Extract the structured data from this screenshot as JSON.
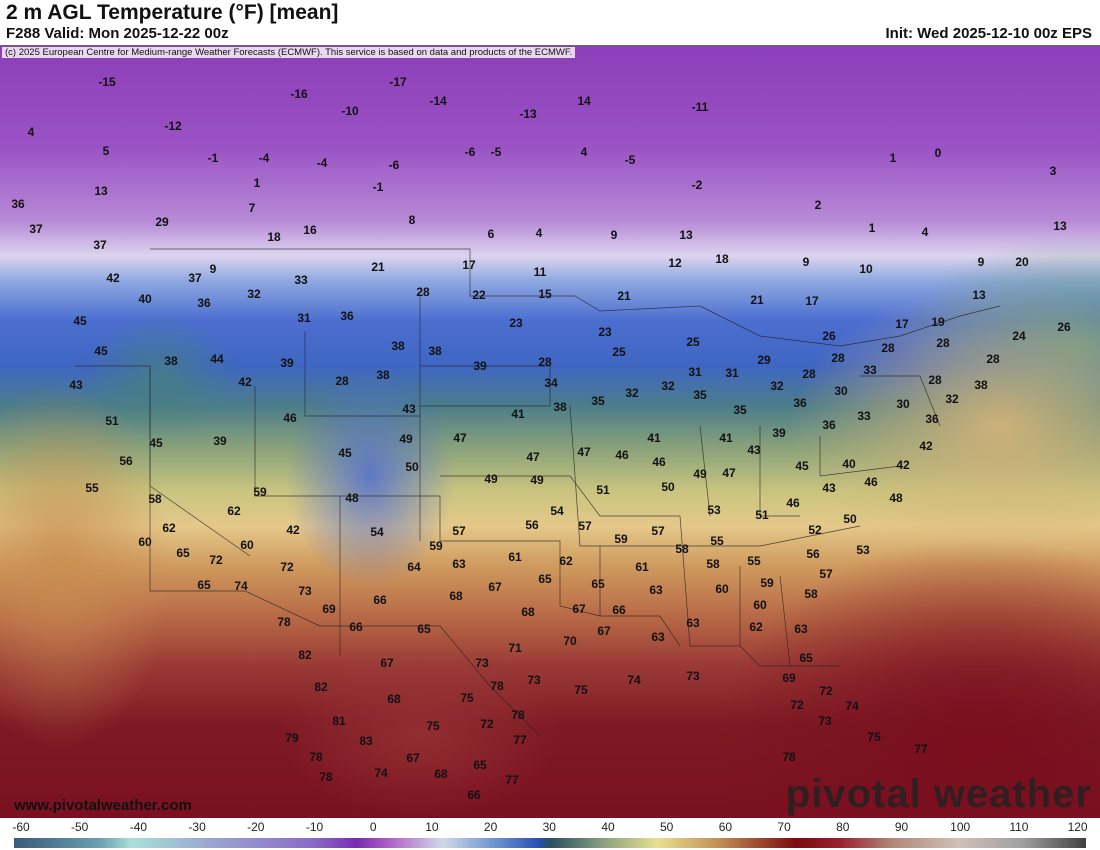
{
  "header": {
    "title": "2 m AGL Temperature (°F) [mean]",
    "valid": "F288 Valid: Mon 2025-12-22 00z",
    "init": "Init: Wed 2025-12-10 00z EPS"
  },
  "copyright": "(c) 2025 European Centre for Medium-range Weather Forecasts (ECMWF). This service is based on data and products of the ECMWF.",
  "watermark": "pivotal weather",
  "url": "www.pivotalweather.com",
  "colorbar": {
    "unit": "°F",
    "ticks": [
      "-60",
      "-50",
      "-40",
      "-30",
      "-20",
      "-10",
      "0",
      "10",
      "20",
      "30",
      "40",
      "50",
      "60",
      "70",
      "80",
      "90",
      "100",
      "110",
      "120"
    ]
  },
  "temperature_labels": [
    "-15",
    "-17",
    "-16",
    "-14",
    "14",
    "-10",
    "-11",
    "-13",
    "-12",
    "4",
    "5",
    "-1",
    "-4",
    "-4",
    "-6",
    "-6",
    "-5",
    "4",
    "-5",
    "1",
    "0",
    "3",
    "13",
    "1",
    "-1",
    "-2",
    "36",
    "7",
    "8",
    "2",
    "29",
    "37",
    "18",
    "16",
    "6",
    "4",
    "9",
    "13",
    "1",
    "4",
    "13",
    "37",
    "11",
    "9",
    "21",
    "17",
    "12",
    "18",
    "9",
    "10",
    "9",
    "20",
    "42",
    "37",
    "33",
    "40",
    "32",
    "28",
    "22",
    "15",
    "21",
    "21",
    "17",
    "13",
    "36",
    "31",
    "36",
    "23",
    "17",
    "19",
    "26",
    "45",
    "24",
    "26",
    "23",
    "38",
    "38",
    "25",
    "28",
    "28",
    "28",
    "45",
    "38",
    "44",
    "39",
    "28",
    "25",
    "29",
    "28",
    "33",
    "38",
    "28",
    "42",
    "43",
    "39",
    "28",
    "34",
    "31",
    "31",
    "32",
    "28",
    "38",
    "30",
    "35",
    "32",
    "32",
    "35",
    "35",
    "36",
    "38",
    "43",
    "41",
    "33",
    "30",
    "32",
    "36",
    "51",
    "46",
    "39",
    "49",
    "47",
    "45",
    "41",
    "41",
    "39",
    "36",
    "42",
    "47",
    "46",
    "47",
    "45",
    "43",
    "56",
    "50",
    "46",
    "45",
    "40",
    "42",
    "55",
    "49",
    "49",
    "49",
    "47",
    "51",
    "50",
    "46",
    "43",
    "58",
    "59",
    "48",
    "48",
    "46",
    "54",
    "62",
    "53",
    "51",
    "50",
    "62",
    "42",
    "54",
    "57",
    "56",
    "57",
    "57",
    "52",
    "60",
    "60",
    "59",
    "59",
    "55",
    "53",
    "65",
    "72",
    "61",
    "62",
    "58",
    "55",
    "56",
    "72",
    "64",
    "63",
    "58",
    "61",
    "65",
    "74",
    "67",
    "65",
    "65",
    "59",
    "57",
    "73",
    "68",
    "63",
    "60",
    "58",
    "66",
    "69",
    "67",
    "68",
    "66",
    "60",
    "78",
    "66",
    "65",
    "63",
    "62",
    "63",
    "70",
    "67",
    "63",
    "71",
    "82",
    "67",
    "73",
    "65",
    "82",
    "68",
    "75",
    "78",
    "73",
    "75",
    "74",
    "73",
    "69",
    "72",
    "81",
    "75",
    "72",
    "78",
    "72",
    "74",
    "73",
    "79",
    "83",
    "77",
    "75",
    "78",
    "67",
    "65",
    "77",
    "78",
    "74",
    "68",
    "77",
    "78",
    "66"
  ]
}
